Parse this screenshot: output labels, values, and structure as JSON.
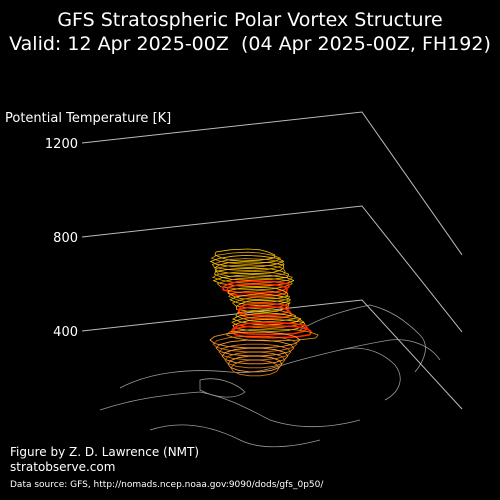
{
  "chart_data": {
    "type": "vortex3d",
    "title": "GFS Stratospheric Polar Vortex Structure",
    "subtitle": "Valid: 12 Apr 2025-00Z  (04 Apr 2025-00Z, FH192)",
    "z_label": "Potential Temperature [K]",
    "zlim": [
      400,
      1200
    ],
    "zticks": [
      400,
      800,
      1200
    ],
    "credit": "Figure by Z. D. Lawrence (NMT)",
    "website": "stratobserve.com",
    "source": "Data source: GFS, http://nomads.ncep.noaa.gov:9090/dods/gfs_0p50/"
  }
}
